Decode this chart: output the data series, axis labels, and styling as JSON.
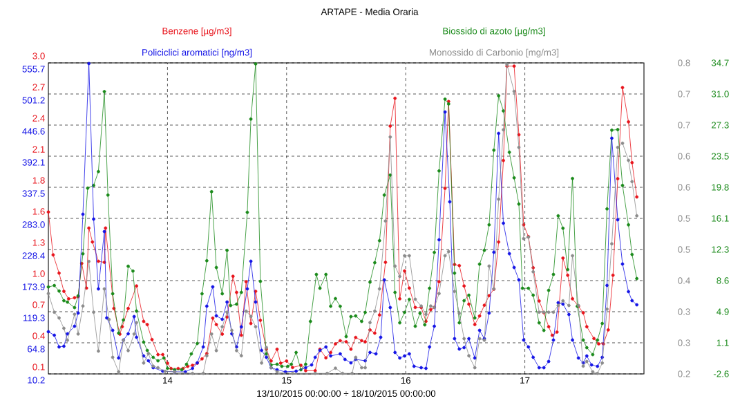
{
  "chart_data": [
    {
      "type": "line",
      "title": "ARTAPE - Media Oraria",
      "xlabel": "13/10/2015 00:00:00 ÷ 18/10/2015 00:00:00",
      "xlim": [
        13,
        18
      ],
      "xticks": [
        14,
        15,
        16,
        17
      ],
      "ylim": [
        0.1,
        3.0
      ],
      "yticks": [
        {
          "value": 0.1,
          "label": "0.1"
        },
        {
          "value": 0.39,
          "label": "0.4"
        },
        {
          "value": 0.68,
          "label": "0.7"
        },
        {
          "value": 0.97,
          "label": "1.0"
        },
        {
          "value": 1.26,
          "label": "1.3"
        },
        {
          "value": 1.55,
          "label": "1.6"
        },
        {
          "value": 1.84,
          "label": "1.8"
        },
        {
          "value": 2.13,
          "label": "2.1"
        },
        {
          "value": 2.42,
          "label": "2.4"
        },
        {
          "value": 2.71,
          "label": "2.7"
        },
        {
          "value": 3.0,
          "label": "3.0"
        }
      ],
      "y2lim": [
        -2.6,
        34.74
      ],
      "y2ticks": [
        {
          "value": -2.6,
          "label": "-2.6"
        },
        {
          "value": 1.134,
          "label": "1.1"
        },
        {
          "value": 4.868,
          "label": "4.9"
        },
        {
          "value": 8.602,
          "label": "8.6"
        },
        {
          "value": 12.336,
          "label": "12.3"
        },
        {
          "value": 16.07,
          "label": "16.1"
        },
        {
          "value": 19.804,
          "label": "19.8"
        },
        {
          "value": 23.538,
          "label": "23.5"
        },
        {
          "value": 27.272,
          "label": "27.3"
        },
        {
          "value": 31.006,
          "label": "31.0"
        },
        {
          "value": 34.74,
          "label": "34.7"
        }
      ],
      "grid": true,
      "legend": "top",
      "marker": "circle",
      "line_style": "solid",
      "series": [
        {
          "name": "Benzene [µg/m3]",
          "color": "#e8141c",
          "axis": "y",
          "x": [
            13.0,
            13.04,
            13.09,
            13.13,
            13.17,
            13.22,
            13.25,
            13.28,
            13.32,
            13.34,
            13.37,
            13.42,
            13.47,
            13.48,
            13.55,
            13.6,
            13.62,
            13.67,
            13.74,
            13.8,
            13.83,
            13.87,
            13.92,
            13.96,
            14.0,
            14.03,
            14.09,
            14.13,
            14.17,
            14.21,
            14.25,
            14.29,
            14.33,
            14.38,
            14.41,
            14.46,
            14.5,
            14.55,
            14.58,
            14.62,
            14.66,
            14.7,
            14.74,
            14.78,
            14.83,
            14.87,
            14.92,
            14.95,
            15.0,
            15.05,
            15.12,
            15.16,
            15.24,
            15.28,
            15.33,
            15.37,
            15.41,
            15.45,
            15.5,
            15.54,
            15.58,
            15.63,
            15.66,
            15.7,
            15.74,
            15.78,
            15.83,
            15.87,
            15.91,
            15.95,
            15.99,
            16.03,
            16.08,
            16.13,
            16.17,
            16.21,
            16.24,
            16.28,
            16.33,
            16.36,
            16.41,
            16.45,
            16.49,
            16.53,
            16.58,
            16.62,
            16.66,
            16.7,
            16.74,
            16.78,
            16.82,
            16.85,
            16.91,
            16.95,
            16.99,
            17.03,
            17.07,
            17.12,
            17.16,
            17.2,
            17.23,
            17.27,
            17.32,
            17.36,
            17.4,
            17.45,
            17.49,
            17.52,
            17.58,
            17.62,
            17.66,
            17.7,
            17.74,
            17.78,
            17.82,
            17.87,
            17.9,
            17.94
          ],
          "values": [
            1.61,
            1.21,
            1.04,
            0.87,
            0.8,
            0.81,
            0.82,
            1.13,
            0.9,
            1.46,
            1.33,
            1.15,
            1.14,
            1.46,
            0.71,
            0.47,
            0.54,
            0.71,
            0.92,
            0.59,
            0.56,
            0.42,
            0.28,
            0.28,
            0.2,
            0.15,
            0.15,
            0.15,
            0.17,
            0.18,
            0.2,
            0.24,
            0.29,
            0.62,
            0.56,
            0.47,
            0.63,
            1.01,
            0.86,
            0.46,
            0.96,
            0.57,
            0.87,
            0.6,
            0.33,
            0.22,
            0.33,
            0.2,
            0.22,
            0.16,
            0.18,
            0.13,
            0.13,
            0.33,
            0.25,
            0.3,
            0.38,
            0.41,
            0.4,
            0.33,
            0.44,
            0.41,
            0.4,
            0.51,
            0.48,
            0.65,
            1.14,
            2.41,
            2.67,
            0.8,
            1.06,
            0.9,
            0.72,
            0.72,
            0.59,
            0.7,
            0.72,
            0.96,
            1.83,
            2.64,
            1.12,
            1.11,
            0.92,
            0.75,
            0.56,
            0.64,
            0.74,
            0.83,
            0.89,
            1.33,
            2.09,
            2.97,
            2.97,
            2.33,
            1.49,
            1.38,
            1.09,
            0.78,
            0.67,
            0.54,
            0.46,
            0.49,
            1.18,
            1.02,
            0.8,
            0.73,
            0.67,
            0.54,
            0.43,
            0.38,
            0.38,
            0.51,
            1.02,
            1.92,
            2.77,
            2.45,
            2.07,
            1.75
          ]
        },
        {
          "name": "Biossido di azoto [µg/m3]",
          "color": "#1a8a1a",
          "axis": "y2",
          "x": [
            13.0,
            13.05,
            13.09,
            13.13,
            13.16,
            13.22,
            13.25,
            13.29,
            13.33,
            13.38,
            13.42,
            13.47,
            13.5,
            13.54,
            13.59,
            13.63,
            13.67,
            13.71,
            13.74,
            13.8,
            13.83,
            13.88,
            13.92,
            13.97,
            14.0,
            14.06,
            14.12,
            14.16,
            14.2,
            14.25,
            14.29,
            14.33,
            14.37,
            14.41,
            14.46,
            14.5,
            14.53,
            14.58,
            14.62,
            14.67,
            14.7,
            14.74,
            14.78,
            14.83,
            14.87,
            14.92,
            14.96,
            15.01,
            15.04,
            15.08,
            15.12,
            15.16,
            15.2,
            15.25,
            15.28,
            15.33,
            15.37,
            15.41,
            15.45,
            15.5,
            15.54,
            15.58,
            15.63,
            15.66,
            15.7,
            15.74,
            15.78,
            15.82,
            15.87,
            15.91,
            15.95,
            15.99,
            16.03,
            16.08,
            16.12,
            16.16,
            16.2,
            16.24,
            16.28,
            16.33,
            16.36,
            16.41,
            16.45,
            16.49,
            16.53,
            16.58,
            16.62,
            16.66,
            16.7,
            16.74,
            16.78,
            16.82,
            16.87,
            16.91,
            16.95,
            16.98,
            17.03,
            17.07,
            17.12,
            17.16,
            17.2,
            17.24,
            17.28,
            17.32,
            17.36,
            17.4,
            17.44,
            17.49,
            17.52,
            17.57,
            17.61,
            17.65,
            17.69,
            17.73,
            17.78,
            17.82,
            17.87,
            17.9,
            17.94
          ],
          "values": [
            7.84,
            8.01,
            7.35,
            6.19,
            6.02,
            5.36,
            6.77,
            11.82,
            19.7,
            20.03,
            21.69,
            31.3,
            18.87,
            7.02,
            2.29,
            3.87,
            10.33,
            9.75,
            4.94,
            1.21,
            0.22,
            -0.61,
            -1.03,
            -0.69,
            -1.94,
            -2.1,
            -2.1,
            -1.44,
            -0.2,
            1.05,
            7.02,
            10.99,
            19.28,
            10.17,
            7.02,
            12.24,
            5.61,
            5.77,
            7.18,
            16.8,
            27.99,
            34.62,
            8.51,
            -0.2,
            -1.52,
            -1.44,
            -1.69,
            -1.69,
            -1.44,
            -0.03,
            -2.1,
            -1.44,
            3.7,
            9.34,
            7.68,
            9.34,
            5.52,
            6.44,
            5.52,
            1.88,
            4.28,
            4.36,
            3.7,
            4.78,
            8.42,
            10.75,
            13.4,
            18.87,
            21.27,
            7.18,
            3.53,
            4.78,
            6.35,
            3.12,
            4.69,
            3.29,
            7.68,
            11.99,
            21.77,
            30.39,
            29.81,
            9.5,
            3.53,
            6.19,
            6.85,
            4.11,
            10.58,
            12.24,
            15.3,
            24.26,
            30.8,
            28.98,
            24.01,
            20.94,
            17.79,
            7.68,
            7.68,
            6.85,
            3.53,
            2.62,
            7.43,
            9.34,
            16.38,
            14.89,
            9.92,
            20.86,
            5.52,
            1.46,
            0.55,
            -0.28,
            1.46,
            3.45,
            17.21,
            26.66,
            26.74,
            20.03,
            15.3,
            11.74,
            8.84
          ]
        }
      ]
    },
    {
      "type": "line",
      "xlim": [
        13,
        18
      ],
      "tick_labels": "y",
      "ylim": [
        10.2,
        555.7
      ],
      "yticks": [
        {
          "value": 10.2,
          "label": "10.2"
        },
        {
          "value": 64.75,
          "label": "64.8"
        },
        {
          "value": 119.3,
          "label": "119.3"
        },
        {
          "value": 173.85,
          "label": "173.9"
        },
        {
          "value": 228.4,
          "label": "228.4"
        },
        {
          "value": 282.95,
          "label": "283.0"
        },
        {
          "value": 337.5,
          "label": "337.5"
        },
        {
          "value": 392.05,
          "label": "392.1"
        },
        {
          "value": 446.6,
          "label": "446.6"
        },
        {
          "value": 501.15,
          "label": "501.2"
        },
        {
          "value": 555.7,
          "label": "555.7"
        }
      ],
      "y2lim": [
        0.21,
        0.81
      ],
      "y2ticks": [
        {
          "value": 0.21,
          "label": "0.2"
        },
        {
          "value": 0.27,
          "label": "0.3"
        },
        {
          "value": 0.33,
          "label": "0.3"
        },
        {
          "value": 0.39,
          "label": "0.4"
        },
        {
          "value": 0.45,
          "label": "0.5"
        },
        {
          "value": 0.51,
          "label": "0.5"
        },
        {
          "value": 0.57,
          "label": "0.6"
        },
        {
          "value": 0.63,
          "label": "0.6"
        },
        {
          "value": 0.69,
          "label": "0.7"
        },
        {
          "value": 0.75,
          "label": "0.7"
        },
        {
          "value": 0.81,
          "label": "0.8"
        }
      ],
      "legend": "top",
      "marker": "circle",
      "line_style": "solid",
      "series": [
        {
          "name": "Policiclici aromatici [ng/m3]",
          "color": "#1414e6",
          "axis": "y",
          "x": [
            13.0,
            13.05,
            13.09,
            13.13,
            13.16,
            13.22,
            13.25,
            13.29,
            13.34,
            13.38,
            13.42,
            13.47,
            13.49,
            13.54,
            13.59,
            13.63,
            13.67,
            13.72,
            13.74,
            13.8,
            13.84,
            13.88,
            13.96,
            14.06,
            14.15,
            14.21,
            14.25,
            14.3,
            14.33,
            14.38,
            14.41,
            14.46,
            14.5,
            14.54,
            14.58,
            14.62,
            14.67,
            14.7,
            14.74,
            14.79,
            14.83,
            14.87,
            14.92,
            14.99,
            15.08,
            15.16,
            15.21,
            15.24,
            15.28,
            15.33,
            15.37,
            15.45,
            15.49,
            15.54,
            15.58,
            15.66,
            15.7,
            15.75,
            15.79,
            15.82,
            15.87,
            15.91,
            15.95,
            15.99,
            16.03,
            16.07,
            16.13,
            16.17,
            16.2,
            16.24,
            16.28,
            16.33,
            16.37,
            16.41,
            16.45,
            16.49,
            16.53,
            16.58,
            16.62,
            16.66,
            16.7,
            16.74,
            16.78,
            16.82,
            16.87,
            16.91,
            16.95,
            16.99,
            17.03,
            17.07,
            17.12,
            17.16,
            17.2,
            17.24,
            17.28,
            17.32,
            17.37,
            17.4,
            17.45,
            17.49,
            17.52,
            17.56,
            17.61,
            17.65,
            17.69,
            17.73,
            17.78,
            17.82,
            17.87,
            17.9,
            17.94
          ],
          "values": [
            84.1,
            78.1,
            57.5,
            58.7,
            80.5,
            93.8,
            116.9,
            290.2,
            554.5,
            281.7,
            159.3,
            259.9,
            108.4,
            86.6,
            38.1,
            69.6,
            80.5,
            110.8,
            74.4,
            41.7,
            33.2,
            21.1,
            15.0,
            13.8,
            13.8,
            19.9,
            29.6,
            57.5,
            129.0,
            162.9,
            112.0,
            106.0,
            136.3,
            80.5,
            57.5,
            92.6,
            159.3,
            207.8,
            136.3,
            51.4,
            39.3,
            21.1,
            17.5,
            13.8,
            15.0,
            21.1,
            26.0,
            39.3,
            51.4,
            57.5,
            41.7,
            45.4,
            35.7,
            29.6,
            35.7,
            33.2,
            47.8,
            45.4,
            74.4,
            175.1,
            126.6,
            47.8,
            38.1,
            41.7,
            45.4,
            23.5,
            21.1,
            19.9,
            57.5,
            93.8,
            245.4,
            469.6,
            312.0,
            72.0,
            53.8,
            56.3,
            72.0,
            38.1,
            86.6,
            72.0,
            116.9,
            223.6,
            432.0,
            274.5,
            221.1,
            196.9,
            175.1,
            69.6,
            57.5,
            39.3,
            21.1,
            21.1,
            32.0,
            69.6,
            135.1,
            132.6,
            114.4,
            69.6,
            38.1,
            29.6,
            41.7,
            26.0,
            23.5,
            39.3,
            165.4,
            423.6,
            280.5,
            202.9,
            154.5,
            138.7,
            131.4
          ]
        },
        {
          "name": "Monossido di Carbonio [mg/m3]",
          "color": "#8c8c8c",
          "axis": "y2",
          "x": [
            13.0,
            13.05,
            13.09,
            13.13,
            13.16,
            13.22,
            13.25,
            13.29,
            13.34,
            13.38,
            13.42,
            13.47,
            13.51,
            13.54,
            13.59,
            13.63,
            13.67,
            13.72,
            13.74,
            13.8,
            13.84,
            13.88,
            13.92,
            13.98,
            14.06,
            14.21,
            14.3,
            14.33,
            14.37,
            14.41,
            14.46,
            14.5,
            14.54,
            14.58,
            14.62,
            14.66,
            14.7,
            14.74,
            14.79,
            14.83,
            14.87,
            14.92,
            15.05,
            15.24,
            15.34,
            15.41,
            15.47,
            15.55,
            15.58,
            15.63,
            15.66,
            15.7,
            15.74,
            15.78,
            15.83,
            15.87,
            15.91,
            15.95,
            15.99,
            16.03,
            16.08,
            16.13,
            16.17,
            16.21,
            16.24,
            16.28,
            16.33,
            16.36,
            16.41,
            16.45,
            16.49,
            16.53,
            16.58,
            16.62,
            16.66,
            16.7,
            16.74,
            16.78,
            16.82,
            16.85,
            16.91,
            16.95,
            16.99,
            17.03,
            17.07,
            17.12,
            17.16,
            17.2,
            17.24,
            17.28,
            17.32,
            17.37,
            17.4,
            17.45,
            17.49,
            17.52,
            17.57,
            17.61,
            17.65,
            17.69,
            17.73,
            17.78,
            17.82,
            17.87,
            17.9,
            17.94
          ],
          "values": [
            0.365,
            0.329,
            0.318,
            0.298,
            0.275,
            0.325,
            0.287,
            0.341,
            0.427,
            0.329,
            0.254,
            0.374,
            0.315,
            0.242,
            0.214,
            0.275,
            0.255,
            0.287,
            0.309,
            0.231,
            0.249,
            0.225,
            0.222,
            0.215,
            0.214,
            0.211,
            0.211,
            0.245,
            0.287,
            0.255,
            0.301,
            0.329,
            0.294,
            0.255,
            0.245,
            0.331,
            0.321,
            0.301,
            0.231,
            0.261,
            0.222,
            0.214,
            0.211,
            0.211,
            0.211,
            0.221,
            0.211,
            0.211,
            0.242,
            0.222,
            0.222,
            0.309,
            0.331,
            0.374,
            0.505,
            0.667,
            0.418,
            0.398,
            0.438,
            0.438,
            0.354,
            0.341,
            0.325,
            0.341,
            0.338,
            0.365,
            0.438,
            0.446,
            0.369,
            0.327,
            0.278,
            0.245,
            0.222,
            0.278,
            0.275,
            0.418,
            0.374,
            0.547,
            0.681,
            0.807,
            0.755,
            0.647,
            0.471,
            0.474,
            0.407,
            0.329,
            0.329,
            0.329,
            0.329,
            0.342,
            0.351,
            0.342,
            0.438,
            0.342,
            0.225,
            0.234,
            0.214,
            0.211,
            0.231,
            0.335,
            0.461,
            0.647,
            0.655,
            0.622,
            0.581,
            0.515
          ]
        }
      ]
    }
  ]
}
